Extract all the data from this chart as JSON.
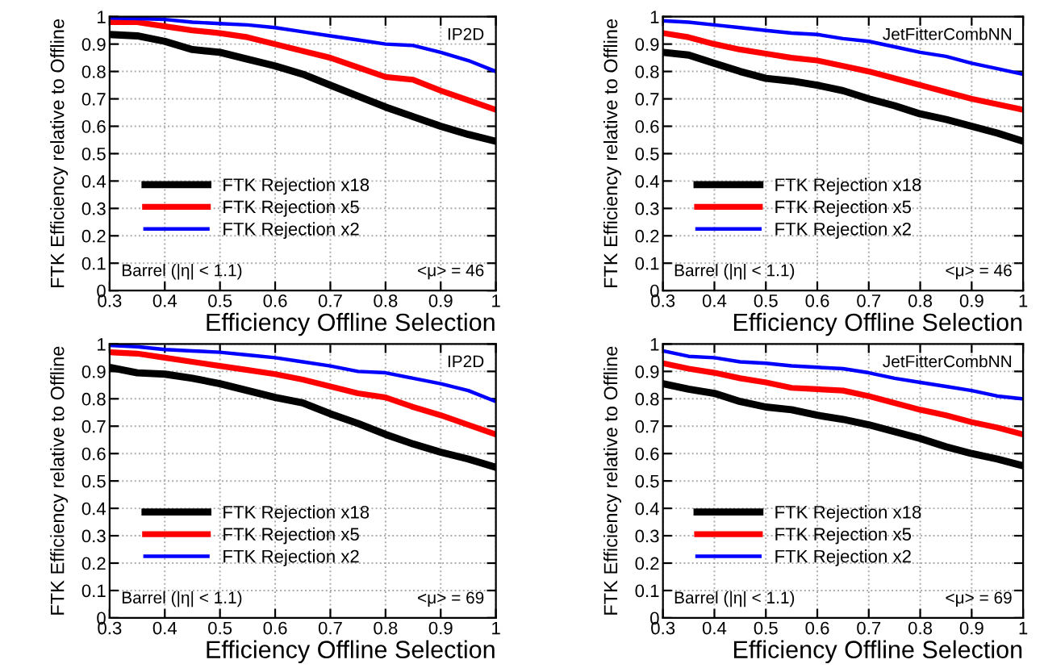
{
  "chart_data": [
    {
      "type": "line",
      "xlabel": "Efficiency Offline Selection",
      "ylabel": "FTK Efficiency relative to Offline",
      "annotations": [
        "IP2D",
        "Barrel (|η| < 1.1)",
        "<μ> = 46"
      ],
      "x": [
        0.3,
        0.35,
        0.4,
        0.45,
        0.5,
        0.55,
        0.6,
        0.65,
        0.7,
        0.75,
        0.8,
        0.85,
        0.9,
        0.95,
        1.0
      ],
      "series": [
        {
          "name": "FTK Rejection x18",
          "color": "#000000",
          "values": [
            0.935,
            0.93,
            0.91,
            0.88,
            0.87,
            0.845,
            0.82,
            0.79,
            0.75,
            0.71,
            0.67,
            0.635,
            0.6,
            0.57,
            0.545
          ]
        },
        {
          "name": "FTK Rejection x5",
          "color": "#ff0000",
          "values": [
            0.98,
            0.98,
            0.965,
            0.95,
            0.94,
            0.925,
            0.9,
            0.875,
            0.85,
            0.815,
            0.78,
            0.77,
            0.73,
            0.695,
            0.66
          ]
        },
        {
          "name": "FTK Rejection x2",
          "color": "#0000ff",
          "values": [
            0.995,
            0.993,
            0.99,
            0.98,
            0.975,
            0.97,
            0.96,
            0.945,
            0.93,
            0.915,
            0.9,
            0.895,
            0.87,
            0.84,
            0.8
          ]
        }
      ],
      "xlim": [
        0.3,
        1
      ],
      "ylim": [
        0,
        1
      ],
      "xticks": [
        0.3,
        0.4,
        0.5,
        0.6,
        0.7,
        0.8,
        0.9,
        1
      ],
      "yticks": [
        0,
        0.1,
        0.2,
        0.3,
        0.4,
        0.5,
        0.6,
        0.7,
        0.8,
        0.9,
        1
      ],
      "grid": true,
      "legend": "left",
      "line_style": "solid"
    },
    {
      "type": "line",
      "xlabel": "Efficiency Offline Selection",
      "ylabel": "FTK Efficiency relative to Offline",
      "annotations": [
        "JetFitterCombNN",
        "Barrel (|η| < 1.1)",
        "<μ> = 46"
      ],
      "x": [
        0.3,
        0.35,
        0.4,
        0.45,
        0.5,
        0.55,
        0.6,
        0.65,
        0.7,
        0.75,
        0.8,
        0.85,
        0.9,
        0.95,
        1.0
      ],
      "series": [
        {
          "name": "FTK Rejection x18",
          "color": "#000000",
          "values": [
            0.87,
            0.86,
            0.83,
            0.8,
            0.775,
            0.765,
            0.75,
            0.73,
            0.7,
            0.675,
            0.645,
            0.625,
            0.6,
            0.575,
            0.545
          ]
        },
        {
          "name": "FTK Rejection x5",
          "color": "#ff0000",
          "values": [
            0.94,
            0.925,
            0.9,
            0.88,
            0.865,
            0.85,
            0.84,
            0.82,
            0.8,
            0.775,
            0.75,
            0.725,
            0.7,
            0.68,
            0.66
          ]
        },
        {
          "name": "FTK Rejection x2",
          "color": "#0000ff",
          "values": [
            0.985,
            0.98,
            0.97,
            0.96,
            0.95,
            0.94,
            0.935,
            0.92,
            0.91,
            0.89,
            0.87,
            0.855,
            0.83,
            0.81,
            0.79
          ]
        }
      ],
      "xlim": [
        0.3,
        1
      ],
      "ylim": [
        0,
        1
      ],
      "xticks": [
        0.3,
        0.4,
        0.5,
        0.6,
        0.7,
        0.8,
        0.9,
        1
      ],
      "yticks": [
        0,
        0.1,
        0.2,
        0.3,
        0.4,
        0.5,
        0.6,
        0.7,
        0.8,
        0.9,
        1
      ],
      "grid": true,
      "legend": "left",
      "line_style": "solid"
    },
    {
      "type": "line",
      "xlabel": "Efficiency Offline Selection",
      "ylabel": "FTK Efficiency relative to Offline",
      "annotations": [
        "IP2D",
        "Barrel (|η| < 1.1)",
        "<μ> = 69"
      ],
      "x": [
        0.3,
        0.35,
        0.4,
        0.45,
        0.5,
        0.55,
        0.6,
        0.65,
        0.7,
        0.75,
        0.8,
        0.85,
        0.9,
        0.95,
        1.0
      ],
      "series": [
        {
          "name": "FTK Rejection x18",
          "color": "#000000",
          "values": [
            0.915,
            0.895,
            0.89,
            0.875,
            0.855,
            0.83,
            0.805,
            0.785,
            0.745,
            0.71,
            0.67,
            0.635,
            0.605,
            0.58,
            0.55
          ]
        },
        {
          "name": "FTK Rejection x5",
          "color": "#ff0000",
          "values": [
            0.97,
            0.965,
            0.95,
            0.935,
            0.92,
            0.905,
            0.89,
            0.87,
            0.845,
            0.82,
            0.805,
            0.77,
            0.74,
            0.705,
            0.67
          ]
        },
        {
          "name": "FTK Rejection x2",
          "color": "#0000ff",
          "values": [
            0.995,
            0.99,
            0.98,
            0.975,
            0.97,
            0.96,
            0.95,
            0.935,
            0.92,
            0.9,
            0.895,
            0.875,
            0.855,
            0.83,
            0.79
          ]
        }
      ],
      "xlim": [
        0.3,
        1
      ],
      "ylim": [
        0,
        1
      ],
      "xticks": [
        0.3,
        0.4,
        0.5,
        0.6,
        0.7,
        0.8,
        0.9,
        1
      ],
      "yticks": [
        0,
        0.1,
        0.2,
        0.3,
        0.4,
        0.5,
        0.6,
        0.7,
        0.8,
        0.9,
        1
      ],
      "grid": true,
      "legend": "left",
      "line_style": "solid"
    },
    {
      "type": "line",
      "xlabel": "Efficiency Offline Selection",
      "ylabel": "FTK Efficiency relative to Offline",
      "annotations": [
        "JetFitterCombNN",
        "Barrel (|η| < 1.1)",
        "<μ> = 69"
      ],
      "x": [
        0.3,
        0.35,
        0.4,
        0.45,
        0.5,
        0.55,
        0.6,
        0.65,
        0.7,
        0.75,
        0.8,
        0.85,
        0.9,
        0.95,
        1.0
      ],
      "series": [
        {
          "name": "FTK Rejection x18",
          "color": "#000000",
          "values": [
            0.855,
            0.835,
            0.82,
            0.79,
            0.77,
            0.76,
            0.74,
            0.725,
            0.705,
            0.68,
            0.655,
            0.625,
            0.6,
            0.58,
            0.555
          ]
        },
        {
          "name": "FTK Rejection x5",
          "color": "#ff0000",
          "values": [
            0.93,
            0.91,
            0.895,
            0.875,
            0.86,
            0.84,
            0.835,
            0.83,
            0.81,
            0.785,
            0.76,
            0.74,
            0.715,
            0.695,
            0.67
          ]
        },
        {
          "name": "FTK Rejection x2",
          "color": "#0000ff",
          "values": [
            0.975,
            0.955,
            0.95,
            0.935,
            0.93,
            0.92,
            0.915,
            0.91,
            0.895,
            0.875,
            0.86,
            0.845,
            0.83,
            0.81,
            0.8
          ]
        }
      ],
      "xlim": [
        0.3,
        1
      ],
      "ylim": [
        0,
        1
      ],
      "xticks": [
        0.3,
        0.4,
        0.5,
        0.6,
        0.7,
        0.8,
        0.9,
        1
      ],
      "yticks": [
        0,
        0.1,
        0.2,
        0.3,
        0.4,
        0.5,
        0.6,
        0.7,
        0.8,
        0.9,
        1
      ],
      "grid": true,
      "legend": "left",
      "line_style": "solid"
    }
  ]
}
